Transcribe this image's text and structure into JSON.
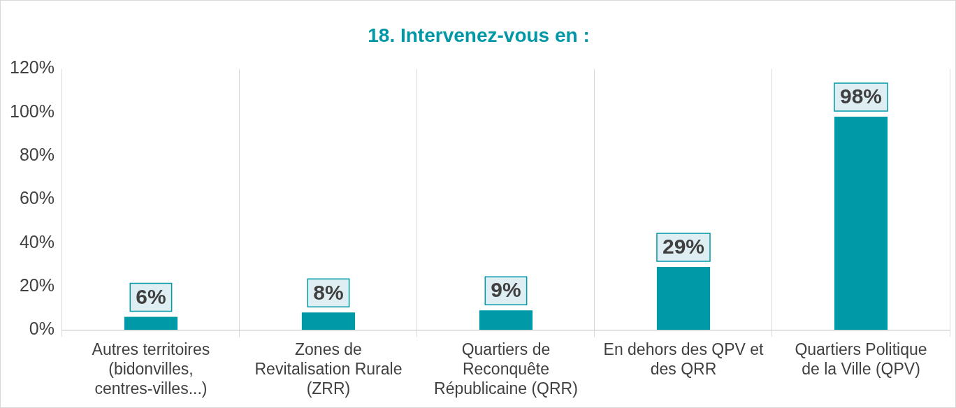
{
  "chart_data": {
    "type": "bar",
    "title": "18. Intervenez-vous en :",
    "categories": [
      "Autres territoires (bidonvilles, centres-villes...)",
      "Zones de Revitalisation Rurale (ZRR)",
      "Quartiers de Reconquête Républicaine (QRR)",
      "En dehors des QPV et des QRR",
      "Quartiers Politique de la Ville (QPV)"
    ],
    "values": [
      6,
      8,
      9,
      29,
      98
    ],
    "color": "#0099a8",
    "ylim": [
      0,
      120
    ],
    "yticks": [
      {
        "value": 0,
        "label": "0%"
      },
      {
        "value": 20,
        "label": "20%"
      },
      {
        "value": 40,
        "label": "40%"
      },
      {
        "value": 60,
        "label": "60%"
      },
      {
        "value": 80,
        "label": "80%"
      },
      {
        "value": 100,
        "label": "100%"
      },
      {
        "value": 120,
        "label": "120%"
      }
    ],
    "value_labels": [
      "6%",
      "8%",
      "9%",
      "29%",
      "98%"
    ],
    "grid": "x",
    "legend": false
  }
}
